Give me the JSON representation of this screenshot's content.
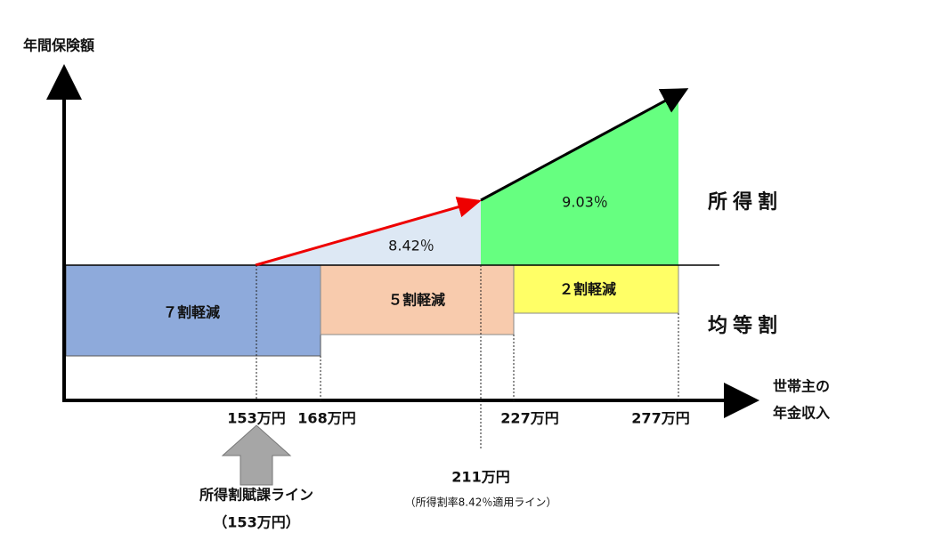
{
  "axes": {
    "y_label": "年間保険額",
    "x_label_line1": "世帯主の",
    "x_label_line2": "年金収入"
  },
  "regions": {
    "shotoku_low_rate": "8.42％",
    "shotoku_high_rate": "9.03％",
    "reduction_70": "７割軽減",
    "reduction_50": "５割軽減",
    "reduction_20": "２割軽減"
  },
  "sections": {
    "shotoku": "所得割",
    "kintou": "均等割"
  },
  "income_marks": {
    "m153": "153万円",
    "m168": "168万円",
    "m227": "227万円",
    "m277": "277万円",
    "m211": "211万円",
    "m211_note": "（所得割率8.42％適用ライン）"
  },
  "callout": {
    "label": "所得割賦課ライン",
    "amount": "（153万円）"
  }
}
